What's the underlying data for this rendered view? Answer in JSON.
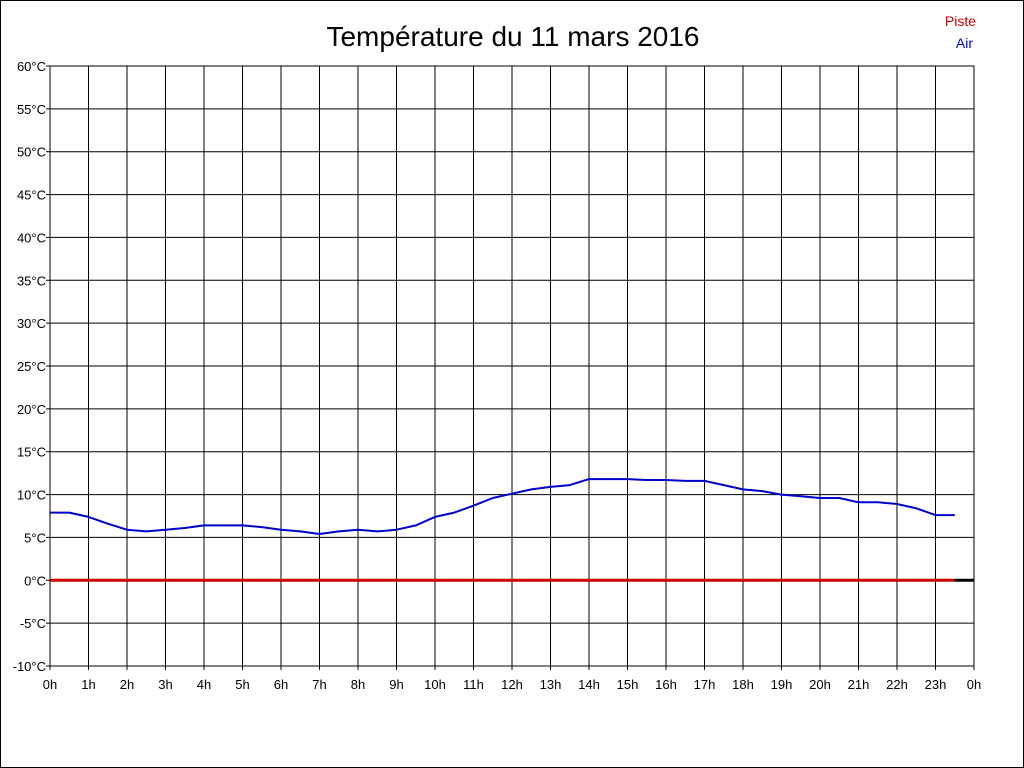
{
  "chart_data": {
    "type": "line",
    "title": "Température du 11 mars 2016",
    "x_tick_labels": [
      "0h",
      "1h",
      "2h",
      "3h",
      "4h",
      "5h",
      "6h",
      "7h",
      "8h",
      "9h",
      "10h",
      "11h",
      "12h",
      "13h",
      "14h",
      "15h",
      "16h",
      "17h",
      "18h",
      "19h",
      "20h",
      "21h",
      "22h",
      "23h",
      "0h"
    ],
    "y_tick_labels": [
      "60°C",
      "55°C",
      "50°C",
      "45°C",
      "40°C",
      "35°C",
      "30°C",
      "25°C",
      "20°C",
      "15°C",
      "10°C",
      "5°C",
      "0°C",
      "-5°C",
      "-10°C"
    ],
    "xlim": [
      0,
      24
    ],
    "ylim": [
      -10,
      60
    ],
    "grid": true,
    "legend_position": "top-right",
    "series": [
      {
        "name": "Piste",
        "color": "#cc0000",
        "x": [
          0,
          23.5
        ],
        "y": [
          0,
          0
        ]
      },
      {
        "name": "Air",
        "color": "#0000cc",
        "x": [
          0,
          0.5,
          1,
          1.5,
          2,
          2.5,
          3,
          3.5,
          4,
          4.5,
          5,
          5.5,
          6,
          6.5,
          7,
          7.5,
          8,
          8.5,
          9,
          9.5,
          10,
          10.5,
          11,
          11.5,
          12,
          12.5,
          13,
          13.5,
          14,
          14.5,
          15,
          15.5,
          16,
          16.5,
          17,
          17.5,
          18,
          18.5,
          19,
          19.5,
          20,
          20.5,
          21,
          21.5,
          22,
          22.5,
          23,
          23.5
        ],
        "y": [
          7.9,
          7.9,
          7.4,
          6.6,
          5.9,
          5.7,
          5.9,
          6.1,
          6.4,
          6.4,
          6.4,
          6.2,
          5.9,
          5.7,
          5.4,
          5.7,
          5.9,
          5.7,
          5.9,
          6.4,
          7.4,
          7.9,
          8.7,
          9.6,
          10.1,
          10.6,
          10.9,
          11.1,
          11.8,
          11.8,
          11.8,
          11.7,
          11.7,
          11.6,
          11.6,
          11.1,
          10.6,
          10.4,
          10.0,
          9.8,
          9.6,
          9.6,
          9.1,
          9.1,
          8.9,
          8.4,
          7.6,
          7.6
        ]
      }
    ]
  }
}
